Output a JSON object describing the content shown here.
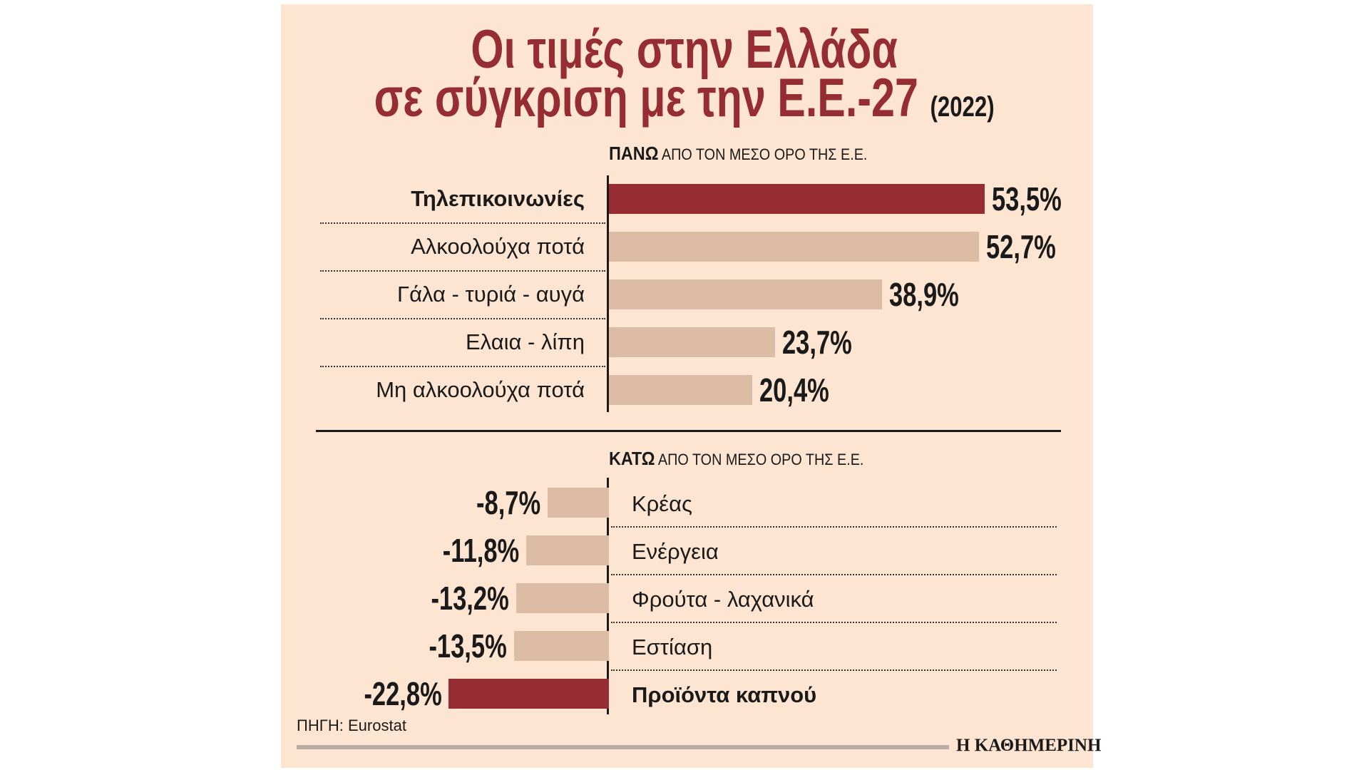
{
  "chart_data": {
    "type": "bar",
    "title_line1": "Οι τιμές στην Ελλάδα",
    "title_line2": "σε σύγκριση με την Ε.Ε.-27",
    "year": "(2022)",
    "above": {
      "heading_bold": "ΠΑΝΩ",
      "heading_rest": " ΑΠΟ ΤΟΝ ΜΕΣΟ ΟΡΟ ΤΗΣ Ε.Ε.",
      "categories": [
        "Τηλεπικοινωνίες",
        "Αλκοολούχα ποτά",
        "Γάλα - τυριά - αυγά",
        "Ελαια - λίπη",
        "Μη αλκοολούχα ποτά"
      ],
      "values": [
        53.5,
        52.7,
        38.9,
        23.7,
        20.4
      ],
      "labels": [
        "53,5%",
        "52,7%",
        "38,9%",
        "23,7%",
        "20,4%"
      ],
      "highlight": [
        true,
        false,
        false,
        false,
        false
      ]
    },
    "below": {
      "heading_bold": "ΚΑΤΩ",
      "heading_rest": " ΑΠΟ ΤΟΝ ΜΕΣΟ ΟΡΟ ΤΗΣ Ε.Ε.",
      "categories": [
        "Κρέας",
        "Ενέργεια",
        "Φρούτα - λαχανικά",
        "Εστίαση",
        "Προϊόντα καπνού"
      ],
      "values": [
        -8.7,
        -11.8,
        -13.2,
        -13.5,
        -22.8
      ],
      "labels": [
        "-8,7%",
        "-11,8%",
        "-13,2%",
        "-13,5%",
        "-22,8%"
      ],
      "highlight": [
        false,
        false,
        false,
        false,
        true
      ]
    },
    "unit": "%",
    "colors": {
      "highlight": "#952d33",
      "normal": "#dcbca4",
      "background": "#fde5d2"
    }
  },
  "source": "ΠΗΓΗ: Eurostat",
  "brand": "Η ΚΑΘΗΜΕΡΙΝΗ"
}
